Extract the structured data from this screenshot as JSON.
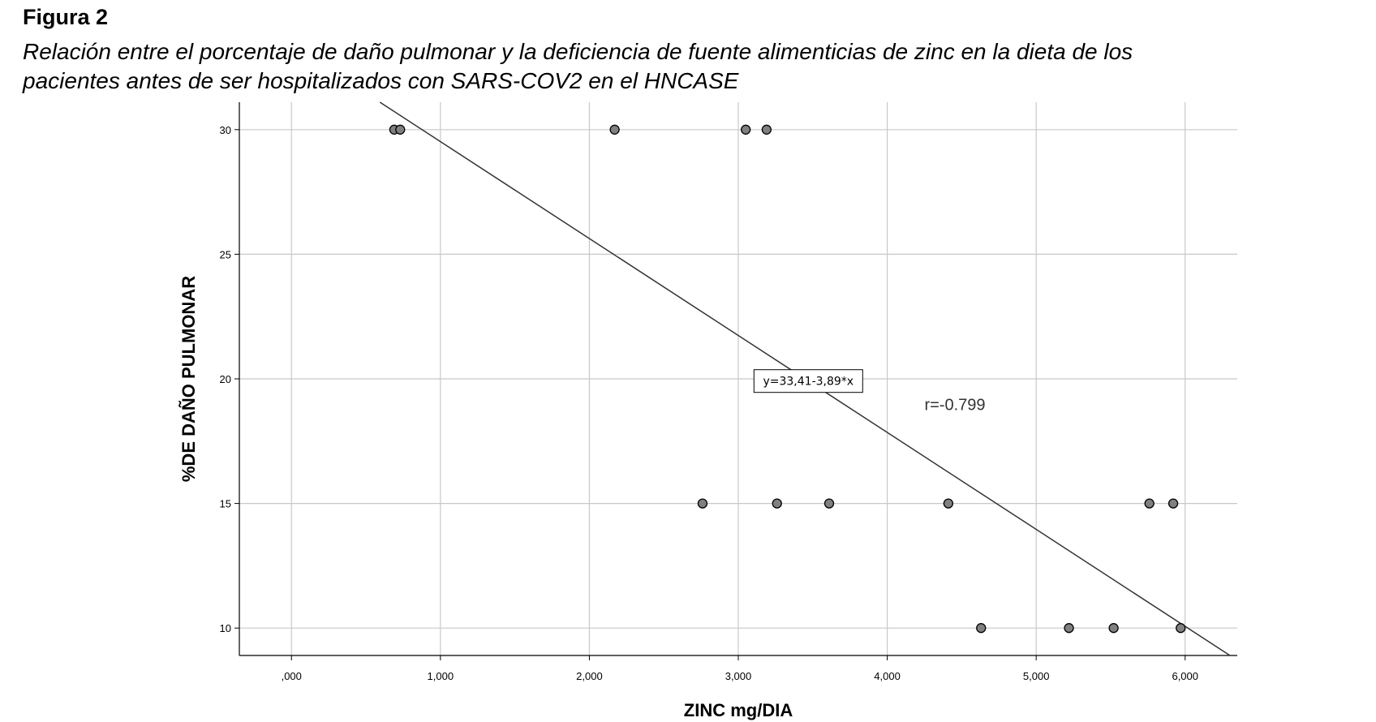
{
  "figure": {
    "label": "Figura 2",
    "caption_line1": "Relación entre el porcentaje de daño pulmonar y la deficiencia de fuente alimenticias de zinc en la dieta de los",
    "caption_line2": "pacientes antes de ser hospitalizados con SARS-COV2 en el HNCASE"
  },
  "chart_data": {
    "type": "scatter",
    "title": "",
    "xlabel": "ZINC mg/DIA",
    "ylabel": "%DE DAÑO PULMONAR",
    "xlim": [
      -0.35,
      6.35
    ],
    "ylim": [
      8.9,
      31.1
    ],
    "x_ticks": [
      0,
      1,
      2,
      3,
      4,
      5,
      6
    ],
    "x_tick_labels": [
      ",000",
      "1,000",
      "2,000",
      "3,000",
      "4,000",
      "5,000",
      "6,000"
    ],
    "y_ticks": [
      10,
      15,
      20,
      25,
      30
    ],
    "y_tick_labels": [
      "10",
      "15",
      "20",
      "25",
      "30"
    ],
    "grid": true,
    "points": [
      {
        "x": 0.69,
        "y": 30
      },
      {
        "x": 0.73,
        "y": 30
      },
      {
        "x": 2.17,
        "y": 30
      },
      {
        "x": 3.05,
        "y": 30
      },
      {
        "x": 3.19,
        "y": 30
      },
      {
        "x": 2.76,
        "y": 15
      },
      {
        "x": 3.26,
        "y": 15
      },
      {
        "x": 3.61,
        "y": 15
      },
      {
        "x": 4.41,
        "y": 15
      },
      {
        "x": 5.76,
        "y": 15
      },
      {
        "x": 5.92,
        "y": 15
      },
      {
        "x": 4.63,
        "y": 10
      },
      {
        "x": 5.22,
        "y": 10
      },
      {
        "x": 5.52,
        "y": 10
      },
      {
        "x": 5.97,
        "y": 10
      }
    ],
    "fit_line": {
      "intercept": 33.41,
      "slope": -3.89,
      "label": "y=33,41-3,89*x"
    },
    "r_label": "r=-0.799",
    "colors": {
      "point_fill": "#808080",
      "point_stroke": "#000000",
      "grid": "#c8c8c8",
      "line": "#333333"
    }
  }
}
